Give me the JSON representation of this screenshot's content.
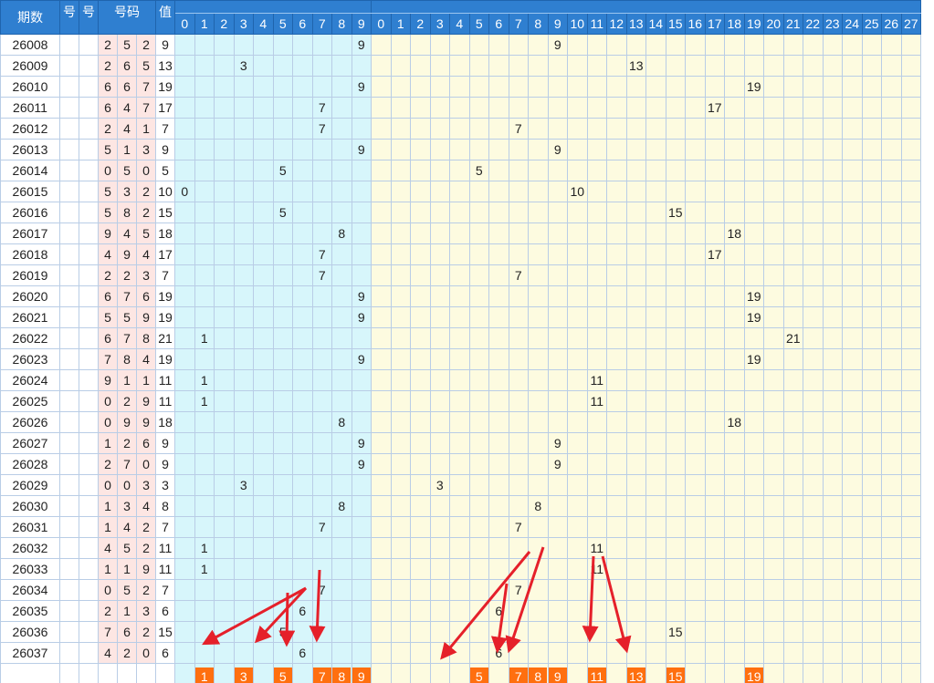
{
  "headers": {
    "issue": "期数",
    "col_a": "号",
    "col_b": "号",
    "draw": "号码",
    "sum": "值",
    "zone1_title": "",
    "zone2_title": ""
  },
  "zone1_cols": [
    "0",
    "1",
    "2",
    "3",
    "4",
    "5",
    "6",
    "7",
    "8",
    "9"
  ],
  "zone2_cols": [
    "0",
    "1",
    "2",
    "3",
    "4",
    "5",
    "6",
    "7",
    "8",
    "9",
    "10",
    "11",
    "12",
    "13",
    "14",
    "15",
    "16",
    "17",
    "18",
    "19",
    "20",
    "21",
    "22",
    "23",
    "24",
    "25",
    "26",
    "27"
  ],
  "rows": [
    {
      "issue": "26008",
      "d": [
        "2",
        "5",
        "2"
      ],
      "sum": "9",
      "z1": {
        "9": "9"
      },
      "z2": {
        "9": "9"
      }
    },
    {
      "issue": "26009",
      "d": [
        "2",
        "6",
        "5"
      ],
      "sum": "13",
      "z1": {
        "3": "3"
      },
      "z2": {
        "13": "13"
      }
    },
    {
      "issue": "26010",
      "d": [
        "6",
        "6",
        "7"
      ],
      "sum": "19",
      "z1": {
        "9": "9"
      },
      "z2": {
        "19": "19"
      }
    },
    {
      "issue": "26011",
      "d": [
        "6",
        "4",
        "7"
      ],
      "sum": "17",
      "z1": {
        "7": "7"
      },
      "z2": {
        "17": "17"
      }
    },
    {
      "issue": "26012",
      "d": [
        "2",
        "4",
        "1"
      ],
      "sum": "7",
      "z1": {
        "7": "7"
      },
      "z2": {
        "7": "7"
      }
    },
    {
      "issue": "26013",
      "d": [
        "5",
        "1",
        "3"
      ],
      "sum": "9",
      "z1": {
        "9": "9"
      },
      "z2": {
        "9": "9"
      }
    },
    {
      "issue": "26014",
      "d": [
        "0",
        "5",
        "0"
      ],
      "sum": "5",
      "z1": {
        "5": "5"
      },
      "z2": {
        "5": "5"
      }
    },
    {
      "issue": "26015",
      "d": [
        "5",
        "3",
        "2"
      ],
      "sum": "10",
      "z1": {
        "0": "0"
      },
      "z2": {
        "10": "10"
      }
    },
    {
      "issue": "26016",
      "d": [
        "5",
        "8",
        "2"
      ],
      "sum": "15",
      "z1": {
        "5": "5"
      },
      "z2": {
        "15": "15"
      }
    },
    {
      "issue": "26017",
      "d": [
        "9",
        "4",
        "5"
      ],
      "sum": "18",
      "z1": {
        "8": "8"
      },
      "z2": {
        "18": "18"
      }
    },
    {
      "issue": "26018",
      "d": [
        "4",
        "9",
        "4"
      ],
      "sum": "17",
      "z1": {
        "7": "7"
      },
      "z2": {
        "17": "17"
      }
    },
    {
      "issue": "26019",
      "d": [
        "2",
        "2",
        "3"
      ],
      "sum": "7",
      "z1": {
        "7": "7"
      },
      "z2": {
        "7": "7"
      }
    },
    {
      "issue": "26020",
      "d": [
        "6",
        "7",
        "6"
      ],
      "sum": "19",
      "z1": {
        "9": "9"
      },
      "z2": {
        "19": "19"
      }
    },
    {
      "issue": "26021",
      "d": [
        "5",
        "5",
        "9"
      ],
      "sum": "19",
      "z1": {
        "9": "9"
      },
      "z2": {
        "19": "19"
      }
    },
    {
      "issue": "26022",
      "d": [
        "6",
        "7",
        "8"
      ],
      "sum": "21",
      "z1": {
        "1": "1"
      },
      "z2": {
        "21": "21"
      }
    },
    {
      "issue": "26023",
      "d": [
        "7",
        "8",
        "4"
      ],
      "sum": "19",
      "z1": {
        "9": "9"
      },
      "z2": {
        "19": "19"
      }
    },
    {
      "issue": "26024",
      "d": [
        "9",
        "1",
        "1"
      ],
      "sum": "11",
      "z1": {
        "1": "1"
      },
      "z2": {
        "11": "11"
      }
    },
    {
      "issue": "26025",
      "d": [
        "0",
        "2",
        "9"
      ],
      "sum": "11",
      "z1": {
        "1": "1"
      },
      "z2": {
        "11": "11"
      }
    },
    {
      "issue": "26026",
      "d": [
        "0",
        "9",
        "9"
      ],
      "sum": "18",
      "z1": {
        "8": "8"
      },
      "z2": {
        "18": "18"
      }
    },
    {
      "issue": "26027",
      "d": [
        "1",
        "2",
        "6"
      ],
      "sum": "9",
      "z1": {
        "9": "9"
      },
      "z2": {
        "9": "9"
      }
    },
    {
      "issue": "26028",
      "d": [
        "2",
        "7",
        "0"
      ],
      "sum": "9",
      "z1": {
        "9": "9"
      },
      "z2": {
        "9": "9"
      }
    },
    {
      "issue": "26029",
      "d": [
        "0",
        "0",
        "3"
      ],
      "sum": "3",
      "z1": {
        "3": "3"
      },
      "z2": {
        "3": "3"
      }
    },
    {
      "issue": "26030",
      "d": [
        "1",
        "3",
        "4"
      ],
      "sum": "8",
      "z1": {
        "8": "8"
      },
      "z2": {
        "8": "8"
      }
    },
    {
      "issue": "26031",
      "d": [
        "1",
        "4",
        "2"
      ],
      "sum": "7",
      "z1": {
        "7": "7"
      },
      "z2": {
        "7": "7"
      }
    },
    {
      "issue": "26032",
      "d": [
        "4",
        "5",
        "2"
      ],
      "sum": "11",
      "z1": {
        "1": "1"
      },
      "z2": {
        "11": "11"
      }
    },
    {
      "issue": "26033",
      "d": [
        "1",
        "1",
        "9"
      ],
      "sum": "11",
      "z1": {
        "1": "1"
      },
      "z2": {
        "11": "11"
      }
    },
    {
      "issue": "26034",
      "d": [
        "0",
        "5",
        "2"
      ],
      "sum": "7",
      "z1": {
        "7": "7"
      },
      "z2": {
        "7": "7"
      }
    },
    {
      "issue": "26035",
      "d": [
        "2",
        "1",
        "3"
      ],
      "sum": "6",
      "z1": {
        "6": "6"
      },
      "z2": {
        "6": "6"
      }
    },
    {
      "issue": "26036",
      "d": [
        "7",
        "6",
        "2"
      ],
      "sum": "15",
      "z1": {
        "5": "5"
      },
      "z2": {
        "15": "15"
      }
    },
    {
      "issue": "26037",
      "d": [
        "4",
        "2",
        "0"
      ],
      "sum": "6",
      "z1": {
        "6": "6"
      },
      "z2": {
        "6": "6"
      }
    }
  ],
  "footer": {
    "zone1": {
      "1": "1",
      "3": "3",
      "5": "5",
      "7": "7",
      "8": "8",
      "9": "9"
    },
    "zone2": {
      "5": "5",
      "7": "7",
      "8": "8",
      "9": "9",
      "11": "11",
      "13": "13",
      "15": "15",
      "19": "19"
    }
  },
  "colors": {
    "header": "#2f7fd0",
    "zone1": "#d7f6fb",
    "zone2": "#fdfbe0",
    "digits": "#fde6e3",
    "footer_badge": "#ff6f0f",
    "arrow": "#e5202a"
  }
}
